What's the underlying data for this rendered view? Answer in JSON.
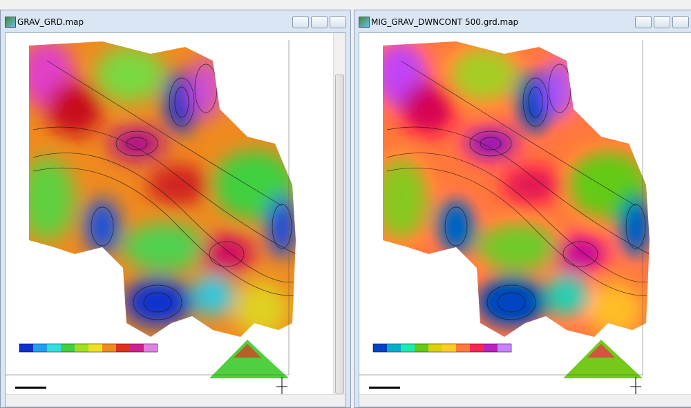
{
  "windows": [
    {
      "title": "GRAV_GRD.map"
    },
    {
      "title": "MIG_GRAV_DWNCONT 500.grd.map"
    }
  ]
}
